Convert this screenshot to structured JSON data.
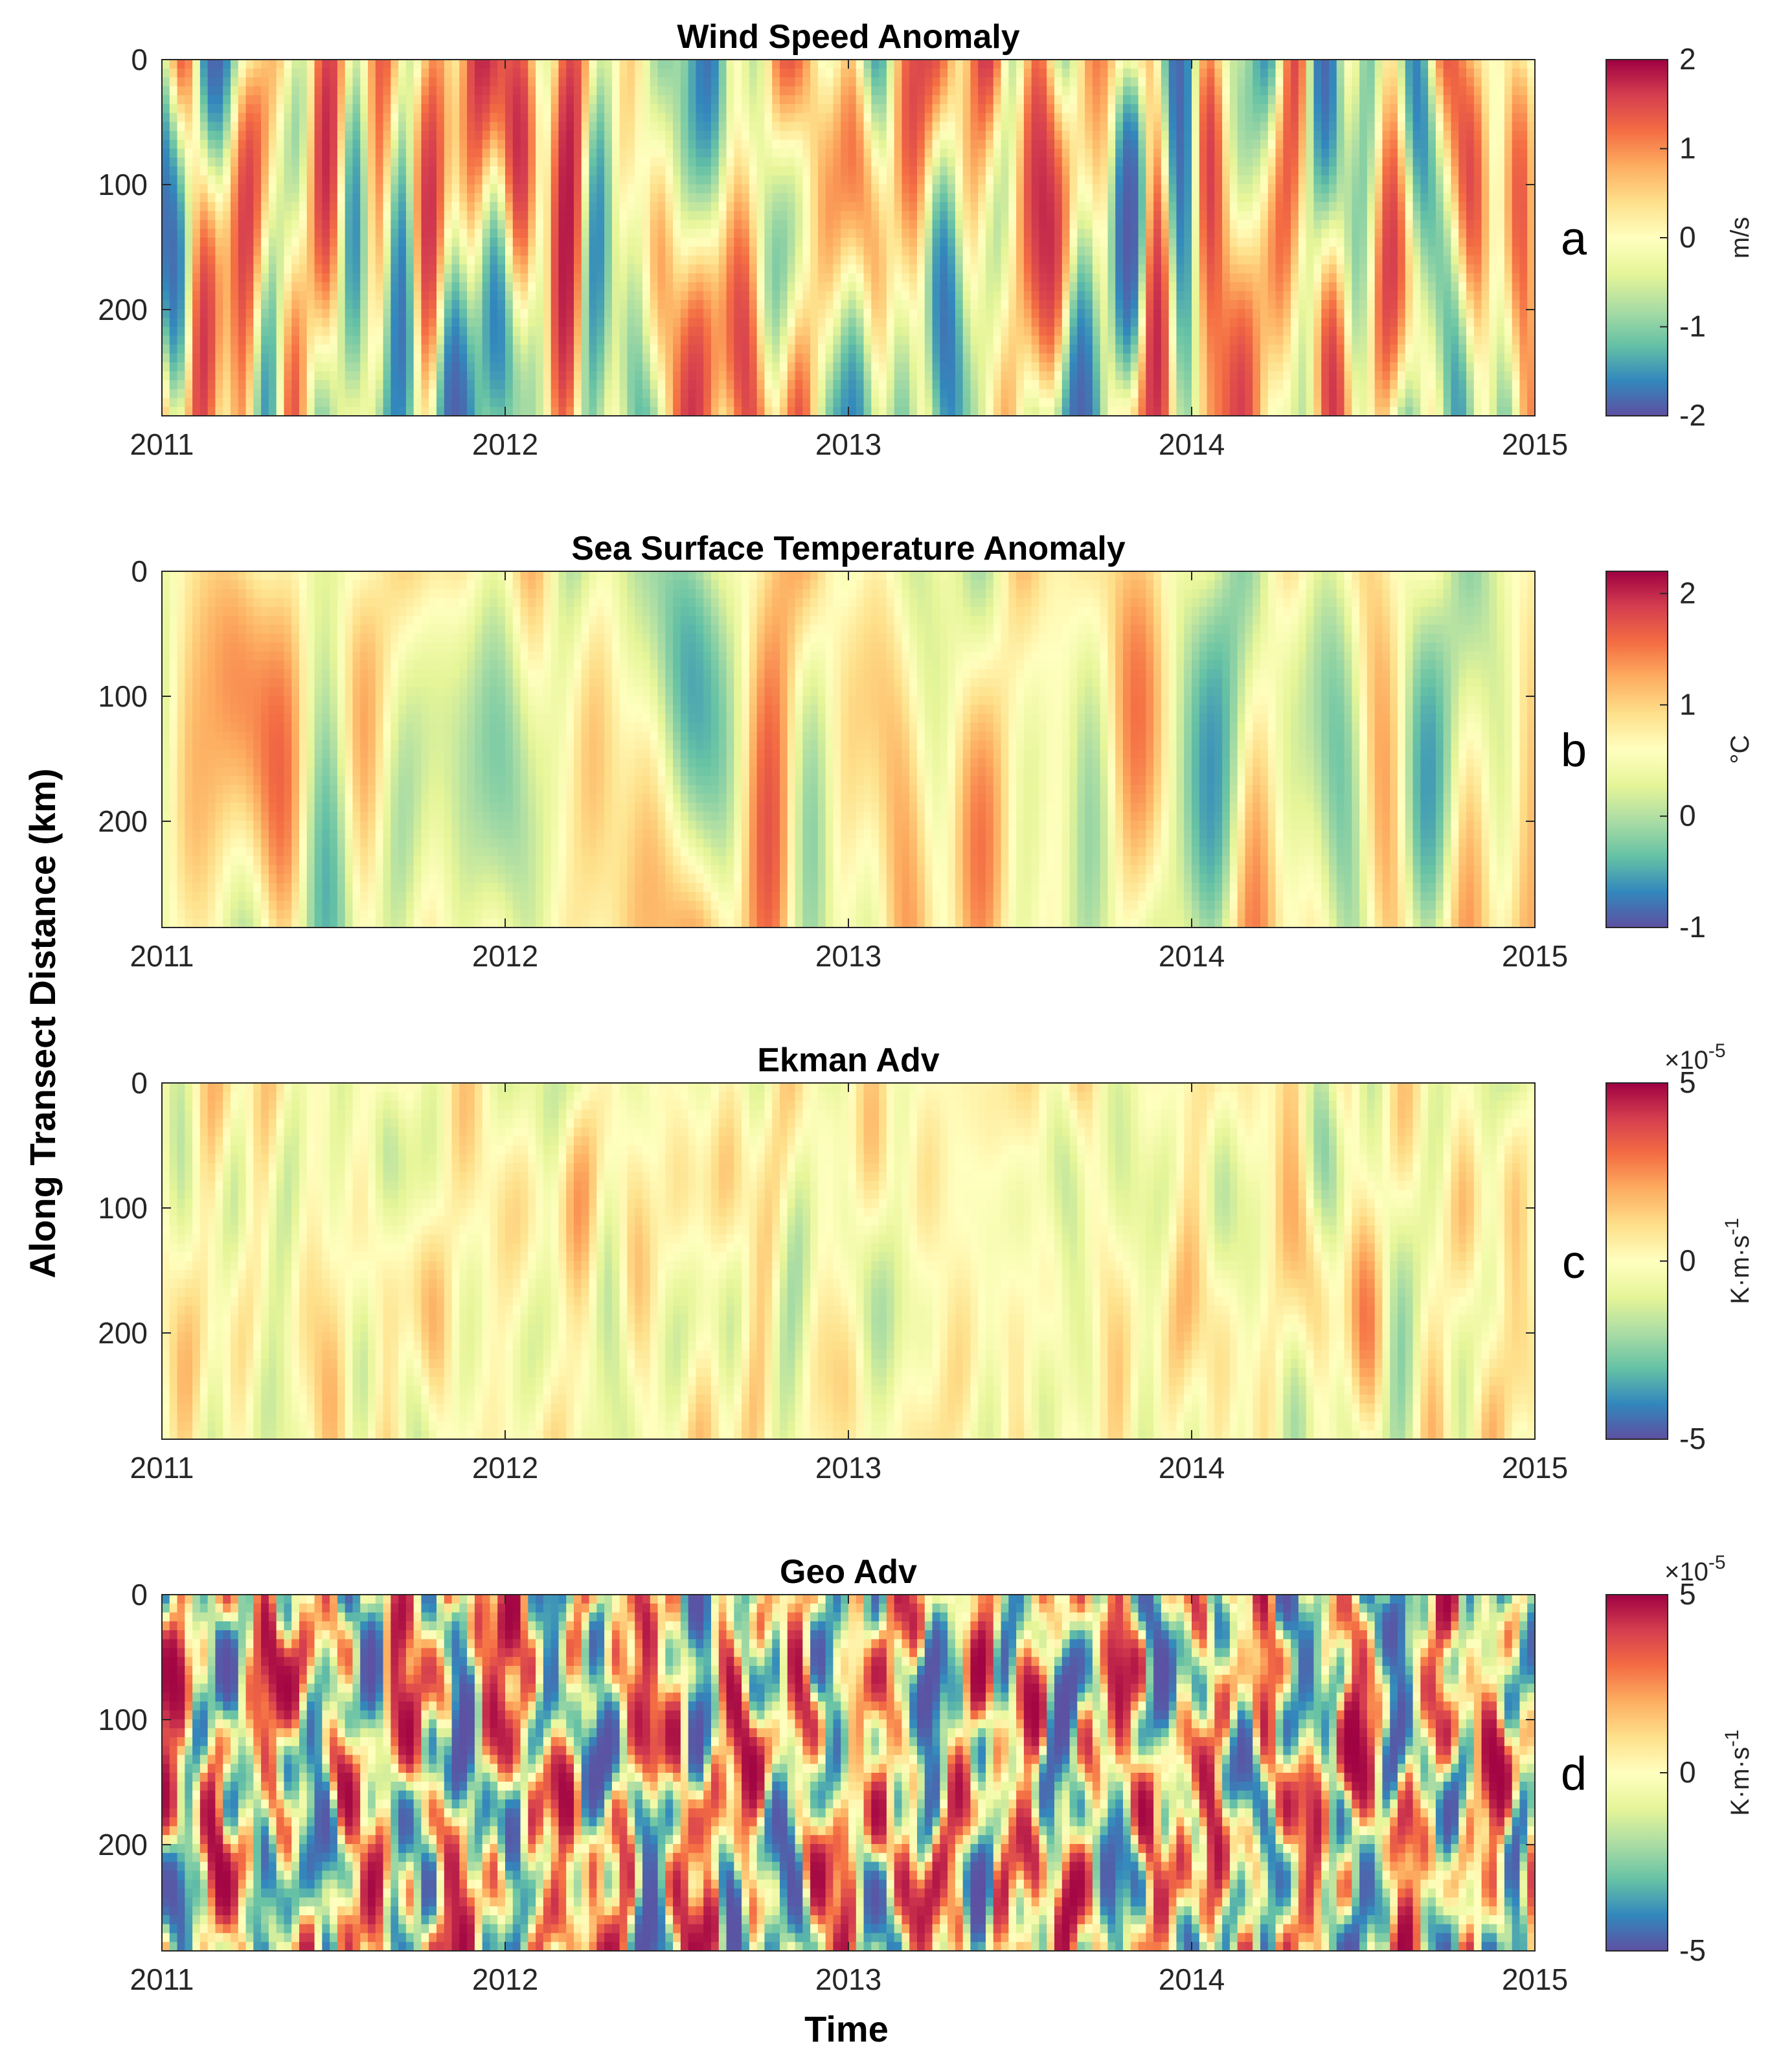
{
  "figure": {
    "ylabel": "Along Transect Distance (km)",
    "xlabel": "Time"
  },
  "colormap": [
    "#5e4fa2",
    "#3288bd",
    "#66c2a5",
    "#abdda4",
    "#e6f598",
    "#ffffbf",
    "#fee08b",
    "#fdae61",
    "#f46d43",
    "#d53e4f",
    "#9e0142"
  ],
  "chart_data": [
    {
      "type": "heatmap",
      "panel": "a",
      "title": "Wind Speed Anomaly",
      "xlabel": "",
      "ylabel": "Along Transect Distance (km)",
      "xlim": [
        2011,
        2015
      ],
      "ylim": [
        0,
        285
      ],
      "x_ticks": [
        "2011",
        "2012",
        "2013",
        "2014",
        "2015"
      ],
      "y_ticks": [
        "0",
        "100",
        "200"
      ],
      "colorbar": {
        "label": "m/s",
        "exponent": "",
        "ticks": [
          "2",
          "1",
          "0",
          "-1",
          "-2"
        ],
        "range": [
          -2,
          2
        ]
      },
      "pattern": {
        "seed": 11,
        "smoothness": "medium",
        "contrast": 1.6,
        "vertical_coherence": "high"
      }
    },
    {
      "type": "heatmap",
      "panel": "b",
      "title": "Sea Surface Temperature Anomaly",
      "xlabel": "",
      "ylabel": "Along Transect Distance (km)",
      "xlim": [
        2011,
        2015
      ],
      "ylim": [
        0,
        285
      ],
      "x_ticks": [
        "2011",
        "2012",
        "2013",
        "2014",
        "2015"
      ],
      "y_ticks": [
        "0",
        "100",
        "200"
      ],
      "colorbar": {
        "label": "°C",
        "exponent": "",
        "ticks": [
          "2",
          "1",
          "0",
          "-1"
        ],
        "range": [
          -1,
          2.2
        ]
      },
      "pattern": {
        "seed": 23,
        "smoothness": "high",
        "contrast": 1.0,
        "vertical_coherence": "high"
      }
    },
    {
      "type": "heatmap",
      "panel": "c",
      "title": "Ekman Adv",
      "xlabel": "",
      "ylabel": "Along Transect Distance (km)",
      "xlim": [
        2011,
        2015
      ],
      "ylim": [
        0,
        285
      ],
      "x_ticks": [
        "2011",
        "2012",
        "2013",
        "2014",
        "2015"
      ],
      "y_ticks": [
        "0",
        "100",
        "200"
      ],
      "colorbar": {
        "label": "K·m·s",
        "label_sup": "-1",
        "exponent": "×10",
        "exponent_sup": "-5",
        "ticks": [
          "5",
          "0",
          "-5"
        ],
        "range": [
          -5,
          5
        ]
      },
      "pattern": {
        "seed": 37,
        "smoothness": "medium",
        "contrast": 0.45,
        "vertical_coherence": "medium"
      }
    },
    {
      "type": "heatmap",
      "panel": "d",
      "title": "Geo Adv",
      "xlabel": "Time",
      "ylabel": "Along Transect Distance (km)",
      "xlim": [
        2011,
        2015
      ],
      "ylim": [
        0,
        285
      ],
      "x_ticks": [
        "2011",
        "2012",
        "2013",
        "2014",
        "2015"
      ],
      "y_ticks": [
        "0",
        "100",
        "200"
      ],
      "colorbar": {
        "label": "K·m·s",
        "label_sup": "-1",
        "exponent": "×10",
        "exponent_sup": "-5",
        "ticks": [
          "5",
          "0",
          "-5"
        ],
        "range": [
          -5,
          5
        ]
      },
      "pattern": {
        "seed": 53,
        "smoothness": "low",
        "contrast": 2.2,
        "vertical_coherence": "low"
      }
    }
  ]
}
